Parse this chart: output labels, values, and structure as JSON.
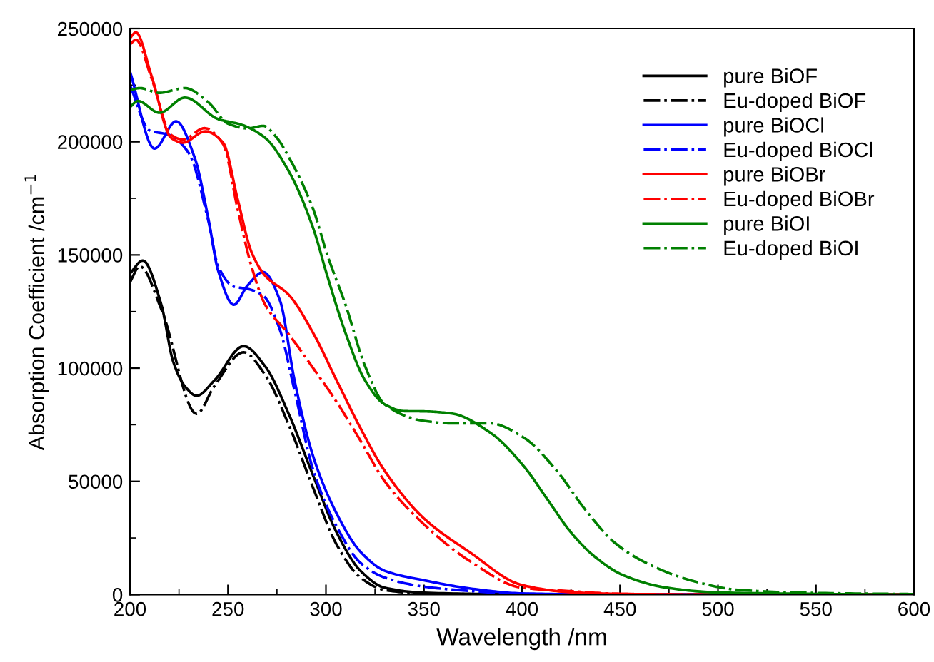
{
  "chart_data": {
    "type": "line",
    "xlabel": "Wavelength /nm",
    "ylabel": "Absorption Coefficient /cm$^{−1}$",
    "xlim": [
      200,
      600
    ],
    "ylim": [
      0,
      250000
    ],
    "xticks": [
      200,
      250,
      300,
      350,
      400,
      450,
      500,
      550,
      600
    ],
    "yticks": [
      0,
      50000,
      100000,
      150000,
      200000,
      250000
    ],
    "legend": "top right",
    "grid": false,
    "series": [
      {
        "name": "pure BiOF",
        "color": "#000000",
        "line_style": "solid",
        "x": [
          200,
          206.5,
          216,
          222,
          228,
          234,
          243,
          258,
          269,
          281,
          293.5,
          305.5,
          317.6,
          330,
          350,
          400,
          450,
          600
        ],
        "values": [
          141800,
          147500,
          128000,
          103000,
          92000,
          87800,
          94500,
          109700,
          100800,
          79800,
          52500,
          27300,
          10500,
          3000,
          800,
          100,
          0,
          0
        ]
      },
      {
        "name": "Eu-doped BiOF",
        "color": "#000000",
        "line_style": "dashdot",
        "x": [
          200,
          205,
          216,
          234,
          243,
          258,
          269,
          281,
          293.5,
          305.5,
          317.6,
          330,
          350,
          400,
          450,
          600
        ],
        "values": [
          138000,
          145000,
          126000,
          79800,
          92000,
          107000,
          97000,
          75000,
          47000,
          22000,
          7500,
          2000,
          500,
          100,
          0,
          0
        ]
      },
      {
        "name": "pure BiOCl",
        "color": "#0000ff",
        "line_style": "solid",
        "x": [
          200,
          212.5,
          223.5,
          233,
          240,
          245,
          253,
          260,
          268,
          276.5,
          284,
          293.5,
          305.5,
          317.6,
          330,
          350,
          375,
          400,
          450,
          600
        ],
        "values": [
          231000,
          197000,
          209000,
          193000,
          166000,
          143000,
          128000,
          136500,
          142400,
          130000,
          94500,
          61000,
          35700,
          18900,
          10500,
          6300,
          2500,
          500,
          0,
          0
        ]
      },
      {
        "name": "Eu-doped BiOCl",
        "color": "#0000ff",
        "line_style": "dashdot",
        "x": [
          200,
          210,
          220,
          230,
          240,
          245,
          253,
          260,
          268,
          276.5,
          284,
          293.5,
          305.5,
          317.6,
          330,
          350,
          375,
          400,
          450,
          600
        ],
        "values": [
          225000,
          205000,
          203000,
          195000,
          165000,
          145000,
          136000,
          135000,
          132000,
          117000,
          90000,
          55000,
          30000,
          14000,
          7500,
          3500,
          1500,
          300,
          0,
          0
        ]
      },
      {
        "name": "pure BiOBr",
        "color": "#ff0000",
        "line_style": "solid",
        "x": [
          200,
          203,
          211,
          221,
          227,
          238.4,
          247.5,
          255,
          262,
          269,
          281,
          293.5,
          305.5,
          317.6,
          330,
          350,
          373,
          400,
          425,
          450,
          500,
          600
        ],
        "values": [
          245800,
          248300,
          229000,
          201700,
          199600,
          204600,
          199600,
          174400,
          151300,
          140800,
          132400,
          115500,
          94500,
          73500,
          54600,
          33600,
          18900,
          4200,
          1000,
          300,
          0,
          0
        ]
      },
      {
        "name": "Eu-doped BiOBr",
        "color": "#ff0000",
        "line_style": "dashdot",
        "x": [
          200,
          203,
          211,
          221,
          227,
          238,
          247.5,
          255,
          262,
          269,
          281,
          293.5,
          305.5,
          317.6,
          330,
          350,
          373,
          400,
          425,
          450,
          500,
          600
        ],
        "values": [
          243000,
          245000,
          228000,
          203000,
          201000,
          206000,
          199000,
          170000,
          145000,
          128000,
          115000,
          100000,
          85000,
          68000,
          50000,
          31000,
          15000,
          3000,
          1500,
          300,
          0,
          0
        ]
      },
      {
        "name": "pure BiOI",
        "color": "#008000",
        "line_style": "solid",
        "x": [
          200,
          204,
          215,
          228,
          245,
          257,
          269,
          281,
          293.5,
          300.7,
          310,
          320,
          330,
          340,
          350,
          364.4,
          383.8,
          400.9,
          413,
          425,
          437,
          452,
          474,
          498,
          550,
          600
        ],
        "values": [
          215300,
          218000,
          212800,
          219500,
          210000,
          207500,
          201700,
          187000,
          161800,
          140700,
          115500,
          94500,
          84000,
          81000,
          80900,
          79900,
          71500,
          56700,
          42000,
          27400,
          16800,
          8400,
          3000,
          1000,
          300,
          0
        ]
      },
      {
        "name": "Eu-doped BiOI",
        "color": "#008000",
        "line_style": "dashdot",
        "x": [
          200,
          205,
          215,
          228,
          240,
          250,
          260,
          268,
          275,
          281,
          293.5,
          300.7,
          310,
          320,
          330,
          350,
          364.4,
          383.8,
          400.9,
          417.8,
          432,
          447,
          461.7,
          486,
          510,
          550,
          600
        ],
        "values": [
          222700,
          223700,
          221600,
          223700,
          217400,
          208000,
          205900,
          207000,
          201700,
          193300,
          170200,
          150000,
          128000,
          100800,
          84000,
          76700,
          75600,
          75600,
          69300,
          54600,
          37800,
          23100,
          14700,
          6300,
          2100,
          700,
          200
        ]
      }
    ]
  }
}
